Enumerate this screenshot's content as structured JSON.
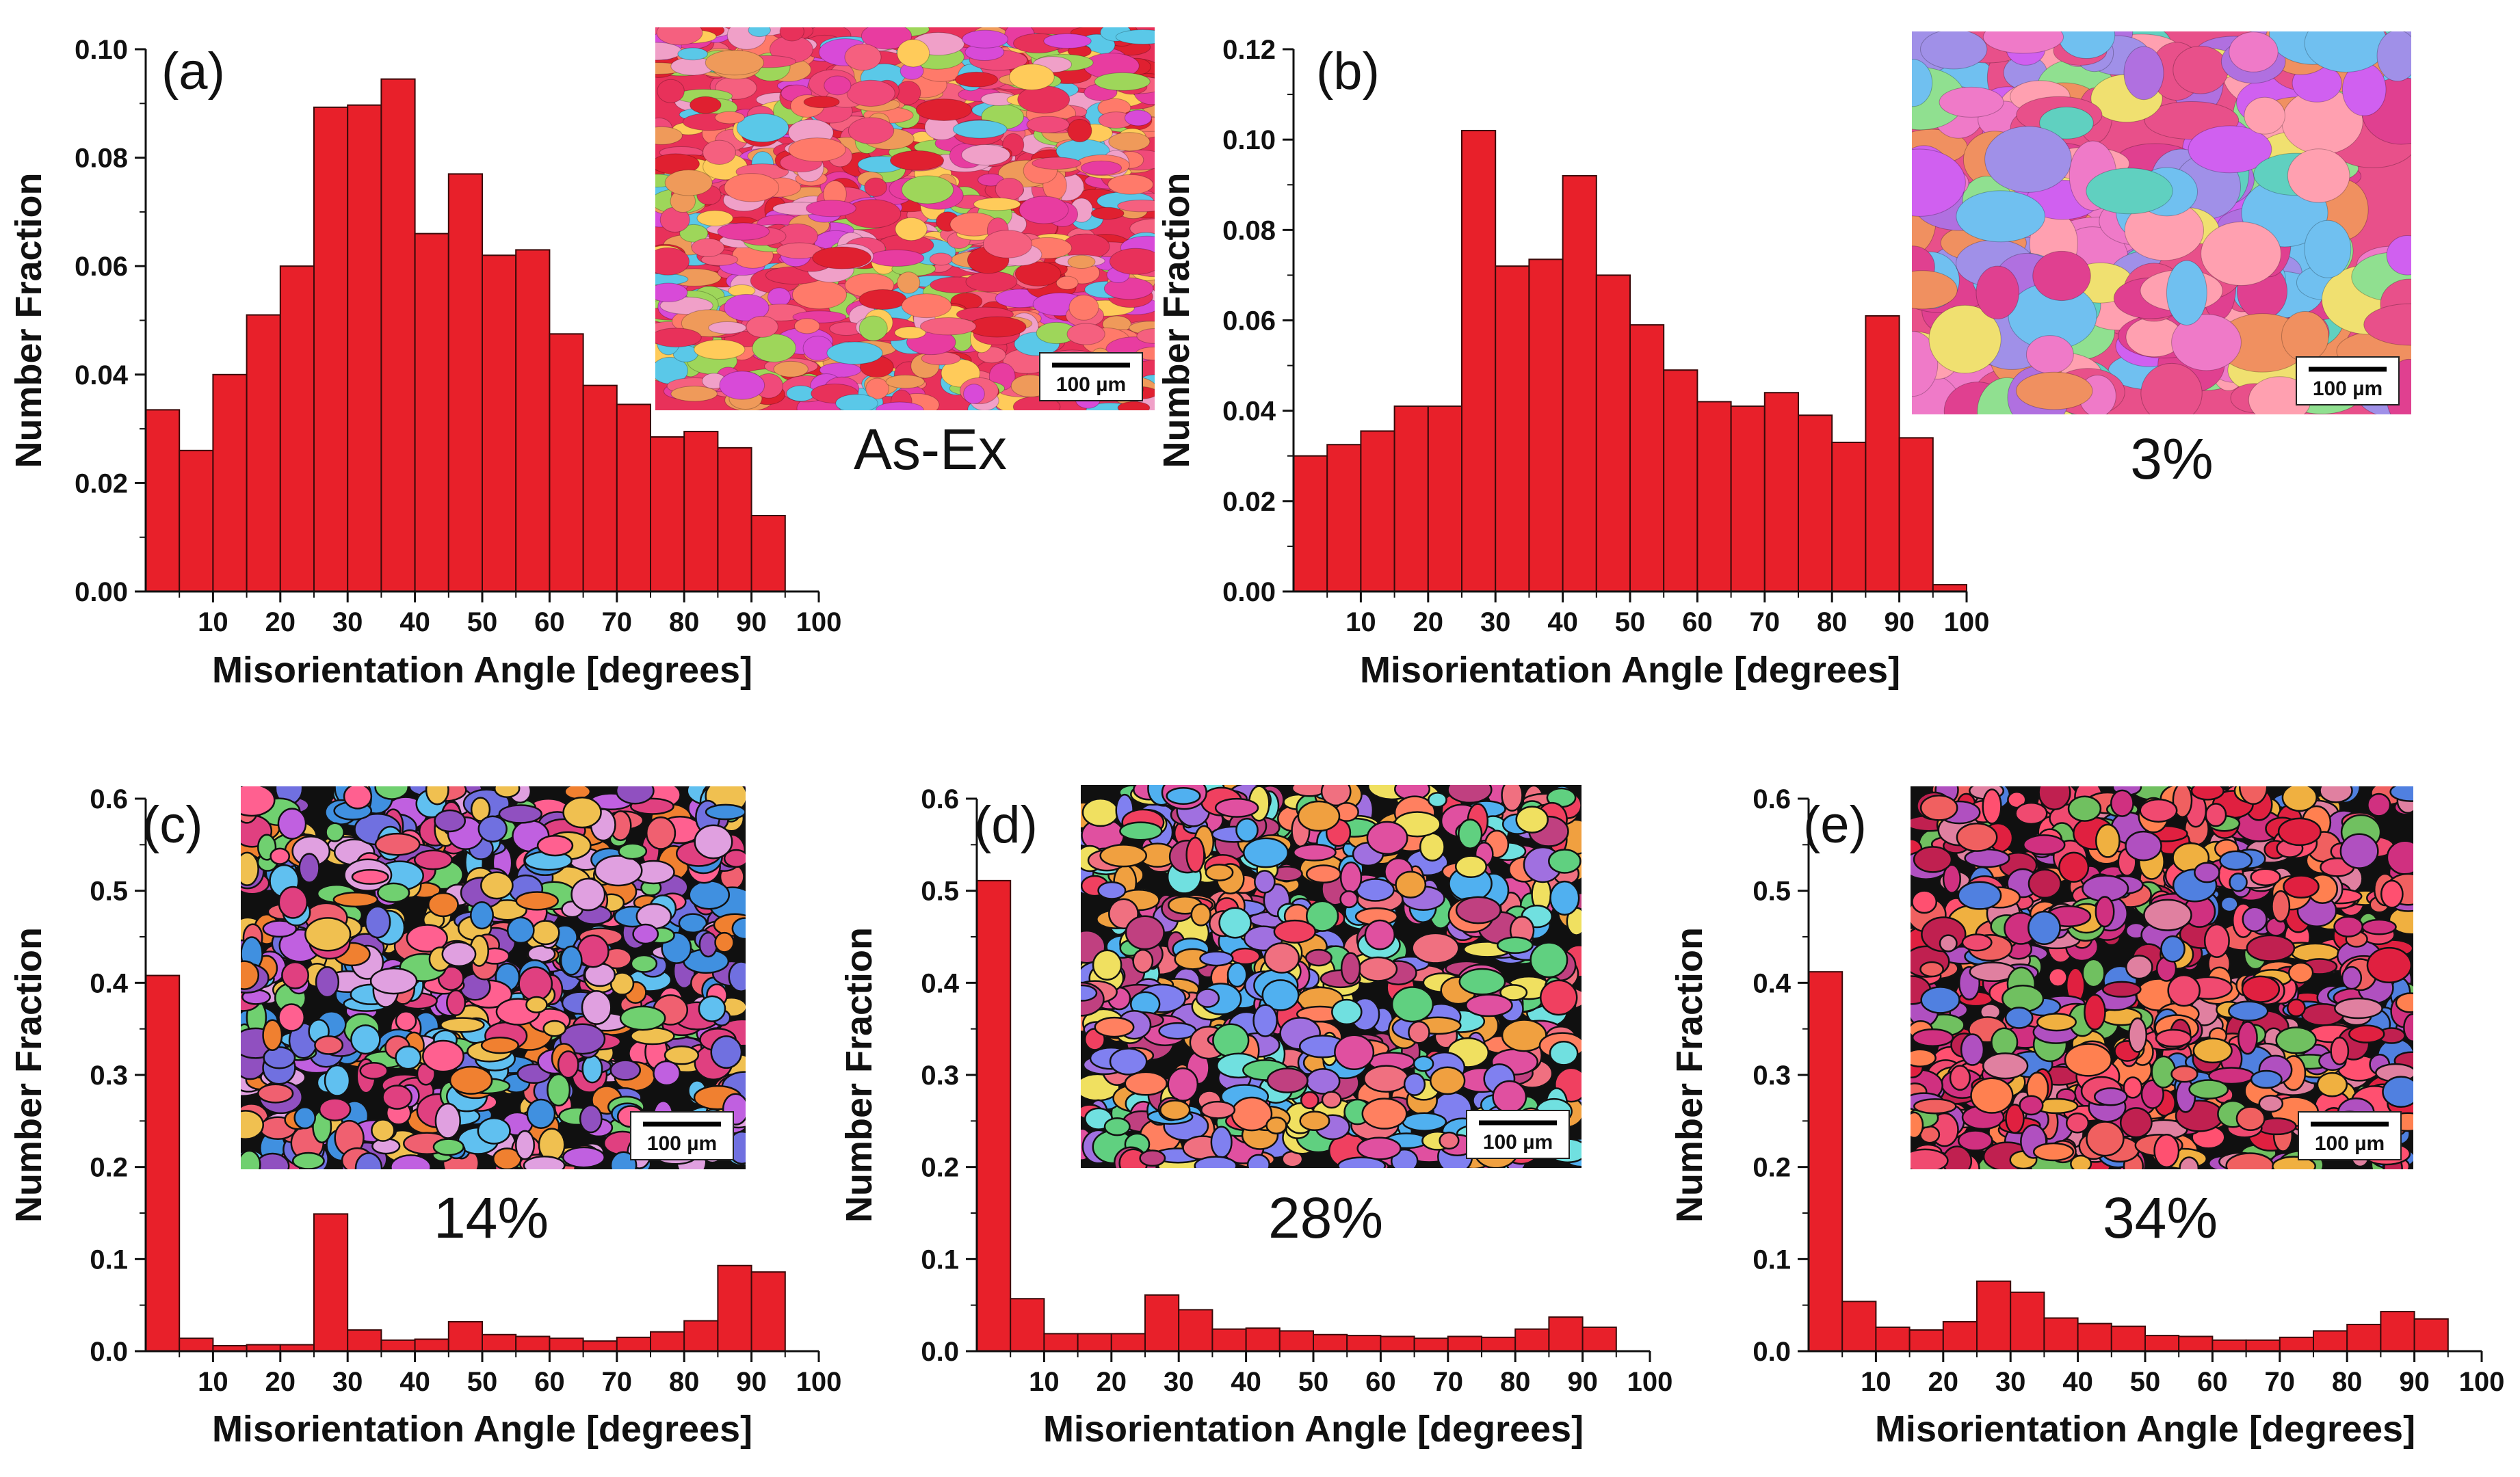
{
  "figure": {
    "xlabel": "Misorientation Angle [degrees]",
    "ylabel": "Number Fraction",
    "scale_bar": "100 µm",
    "colors": {
      "bar_fill": "#e8202a",
      "bar_edge": "#3a0a0a",
      "axis": "#111111"
    },
    "icons": [
      "ebsd-orientation-map"
    ]
  },
  "chart_data": [
    {
      "type": "bar",
      "panel": "(a)",
      "sample": "As-Ex",
      "title": "",
      "xlabel": "Misorientation Angle [degrees]",
      "ylabel": "Number Fraction",
      "bin_width": 5,
      "xlim": [
        0,
        100
      ],
      "ylim": [
        0,
        0.1
      ],
      "xticks": [
        10,
        20,
        30,
        40,
        50,
        60,
        70,
        80,
        90,
        100
      ],
      "yticks": [
        "0.00",
        "0.02",
        "0.04",
        "0.06",
        "0.08",
        "0.10"
      ],
      "bin_centers": [
        2.5,
        7.5,
        12.5,
        17.5,
        22.5,
        27.5,
        32.5,
        37.5,
        42.5,
        47.5,
        52.5,
        57.5,
        62.5,
        67.5,
        72.5,
        77.5,
        82.5,
        87.5,
        92.5
      ],
      "values": [
        0.0335,
        0.026,
        0.04,
        0.051,
        0.06,
        0.0893,
        0.0897,
        0.0945,
        0.066,
        0.077,
        0.062,
        0.063,
        0.0475,
        0.038,
        0.0345,
        0.0285,
        0.0295,
        0.0265,
        0.014
      ]
    },
    {
      "type": "bar",
      "panel": "(b)",
      "sample": "3%",
      "title": "",
      "xlabel": "Misorientation Angle [degrees]",
      "ylabel": "Number Fraction",
      "bin_width": 5,
      "xlim": [
        0,
        100
      ],
      "ylim": [
        0,
        0.12
      ],
      "xticks": [
        10,
        20,
        30,
        40,
        50,
        60,
        70,
        80,
        90,
        100
      ],
      "yticks": [
        "0.00",
        "0.02",
        "0.04",
        "0.06",
        "0.08",
        "0.10",
        "0.12"
      ],
      "bin_centers": [
        2.5,
        7.5,
        12.5,
        17.5,
        22.5,
        27.5,
        32.5,
        37.5,
        42.5,
        47.5,
        52.5,
        57.5,
        62.5,
        67.5,
        72.5,
        77.5,
        82.5,
        87.5,
        92.5,
        97.5
      ],
      "values": [
        0.03,
        0.0325,
        0.0355,
        0.041,
        0.041,
        0.102,
        0.072,
        0.0735,
        0.092,
        0.07,
        0.059,
        0.049,
        0.042,
        0.041,
        0.044,
        0.039,
        0.033,
        0.061,
        0.034,
        0.0015
      ]
    },
    {
      "type": "bar",
      "panel": "(c)",
      "sample": "14%",
      "title": "",
      "xlabel": "Misorientation Angle [degrees]",
      "ylabel": "Number Fraction",
      "bin_width": 5,
      "xlim": [
        0,
        100
      ],
      "ylim": [
        0,
        0.6
      ],
      "xticks": [
        10,
        20,
        30,
        40,
        50,
        60,
        70,
        80,
        90,
        100
      ],
      "yticks": [
        "0.0",
        "0.1",
        "0.2",
        "0.3",
        "0.4",
        "0.5",
        "0.6"
      ],
      "bin_centers": [
        2.5,
        7.5,
        12.5,
        17.5,
        22.5,
        27.5,
        32.5,
        37.5,
        42.5,
        47.5,
        52.5,
        57.5,
        62.5,
        67.5,
        72.5,
        77.5,
        82.5,
        87.5,
        92.5
      ],
      "values": [
        0.408,
        0.014,
        0.006,
        0.007,
        0.007,
        0.149,
        0.023,
        0.012,
        0.013,
        0.032,
        0.018,
        0.016,
        0.014,
        0.011,
        0.015,
        0.021,
        0.033,
        0.093,
        0.086
      ]
    },
    {
      "type": "bar",
      "panel": "(d)",
      "sample": "28%",
      "title": "",
      "xlabel": "Misorientation Angle [degrees]",
      "ylabel": "Number Fraction",
      "bin_width": 5,
      "xlim": [
        0,
        100
      ],
      "ylim": [
        0,
        0.6
      ],
      "xticks": [
        10,
        20,
        30,
        40,
        50,
        60,
        70,
        80,
        90,
        100
      ],
      "yticks": [
        "0.0",
        "0.1",
        "0.2",
        "0.3",
        "0.4",
        "0.5",
        "0.6"
      ],
      "bin_centers": [
        2.5,
        7.5,
        12.5,
        17.5,
        22.5,
        27.5,
        32.5,
        37.5,
        42.5,
        47.5,
        52.5,
        57.5,
        62.5,
        67.5,
        72.5,
        77.5,
        82.5,
        87.5,
        92.5
      ],
      "values": [
        0.511,
        0.057,
        0.019,
        0.019,
        0.019,
        0.061,
        0.045,
        0.024,
        0.025,
        0.022,
        0.018,
        0.017,
        0.016,
        0.014,
        0.016,
        0.015,
        0.024,
        0.037,
        0.026
      ]
    },
    {
      "type": "bar",
      "panel": "(e)",
      "sample": "34%",
      "title": "",
      "xlabel": "Misorientation Angle [degrees]",
      "ylabel": "Number Fraction",
      "bin_width": 5,
      "xlim": [
        0,
        100
      ],
      "ylim": [
        0,
        0.6
      ],
      "xticks": [
        10,
        20,
        30,
        40,
        50,
        60,
        70,
        80,
        90,
        100
      ],
      "yticks": [
        "0.0",
        "0.1",
        "0.2",
        "0.3",
        "0.4",
        "0.5",
        "0.6"
      ],
      "bin_centers": [
        2.5,
        7.5,
        12.5,
        17.5,
        22.5,
        27.5,
        32.5,
        37.5,
        42.5,
        47.5,
        52.5,
        57.5,
        62.5,
        67.5,
        72.5,
        77.5,
        82.5,
        87.5,
        92.5
      ],
      "values": [
        0.412,
        0.054,
        0.026,
        0.023,
        0.032,
        0.076,
        0.064,
        0.036,
        0.03,
        0.027,
        0.017,
        0.016,
        0.012,
        0.012,
        0.015,
        0.022,
        0.029,
        0.043,
        0.035
      ]
    }
  ]
}
